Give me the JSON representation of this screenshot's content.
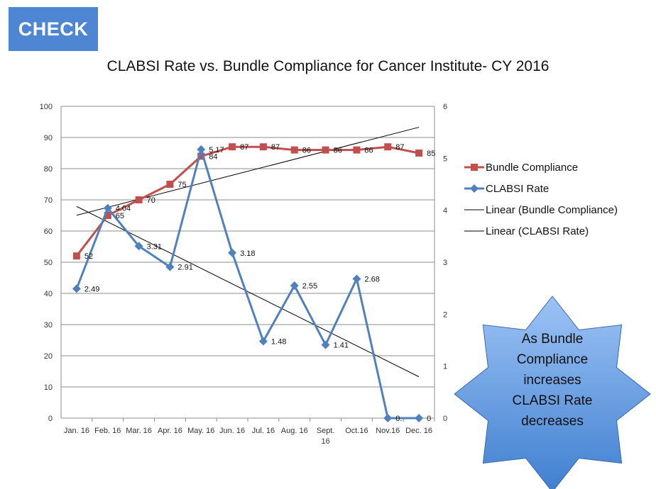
{
  "header": {
    "badge": "CHECK"
  },
  "chart_data": {
    "type": "line",
    "title": "CLABSI Rate vs. Bundle Compliance for Cancer Institute- CY 2016",
    "categories": [
      "Jan. 16",
      "Feb. 16",
      "Mar. 16",
      "Apr. 16",
      "May. 16",
      "Jun. 16",
      "Jul. 16",
      "Aug. 16",
      "Sept. 16",
      "Oct.16",
      "Nov.16",
      "Dec. 16"
    ],
    "y_left": {
      "min": 0,
      "max": 100,
      "ticks": [
        "0",
        "10",
        "20",
        "30",
        "40",
        "50",
        "60",
        "70",
        "80",
        "90",
        "100"
      ]
    },
    "y_right": {
      "min": 0,
      "max": 6,
      "ticks": [
        "0",
        "1",
        "2",
        "3",
        "4",
        "5",
        "6"
      ]
    },
    "grid": true,
    "legend_position": "right",
    "series": [
      {
        "name": "Bundle Compliance",
        "axis": "left",
        "color": "#c0504d",
        "marker": "square",
        "values": [
          52,
          65,
          70,
          75,
          84,
          87,
          87,
          86,
          86,
          86,
          87,
          85
        ],
        "labels": [
          "52",
          "65",
          "70",
          "75",
          "84",
          "87",
          "87",
          "86",
          "86",
          "86",
          "87",
          "85"
        ]
      },
      {
        "name": "CLABSI Rate",
        "axis": "right",
        "color": "#4f81bd",
        "marker": "diamond",
        "values": [
          2.49,
          4.04,
          3.31,
          2.91,
          5.17,
          3.18,
          1.48,
          2.55,
          1.41,
          2.68,
          0,
          0
        ],
        "labels": [
          "2.49",
          "4.04",
          "3.31",
          "2.91",
          "5.17",
          "3.18",
          "1.48",
          "2.55",
          "1.41",
          "2.68",
          "0.",
          "0"
        ]
      }
    ],
    "trendlines": [
      {
        "name": "Linear (Bundle Compliance)",
        "of": "Bundle Compliance",
        "color": "#000000"
      },
      {
        "name": "Linear (CLABSI Rate)",
        "of": "CLABSI Rate",
        "color": "#000000"
      }
    ]
  },
  "callout": {
    "lines": [
      "As Bundle",
      "Compliance",
      "increases",
      "CLABSI Rate",
      "decreases"
    ],
    "fill_top": "#9dc3f5",
    "fill_bottom": "#3f7fd0"
  }
}
